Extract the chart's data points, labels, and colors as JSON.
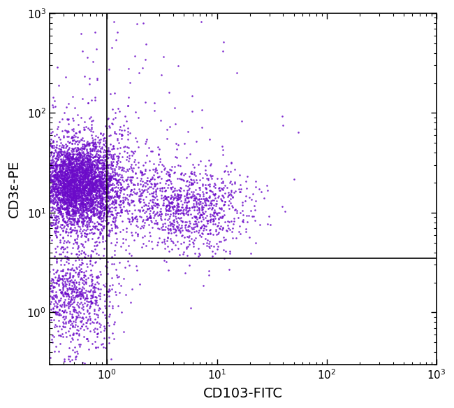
{
  "xlabel": "CD103-FITC",
  "ylabel": "CD3ε-PE",
  "dot_color": "#6B0AC9",
  "dot_alpha": 0.85,
  "dot_size": 3.5,
  "xlim": [
    0.3,
    1000
  ],
  "ylim": [
    0.3,
    1000
  ],
  "gate_x": 1.0,
  "gate_y": 3.5,
  "background_color": "#ffffff",
  "clusters": {
    "main_left": {
      "n": 3000,
      "x_log_mean": -0.28,
      "y_log_mean": 1.28,
      "x_log_std": 0.18,
      "y_log_std": 0.2
    },
    "main_left_halo": {
      "n": 1500,
      "x_log_mean": -0.28,
      "y_log_mean": 1.25,
      "x_log_std": 0.35,
      "y_log_std": 0.38
    },
    "cd103_positive": {
      "n": 1000,
      "x_log_mean": 0.72,
      "y_log_mean": 1.05,
      "x_log_std": 0.28,
      "y_log_std": 0.22
    },
    "bottom_left": {
      "n": 600,
      "x_log_mean": -0.35,
      "y_log_mean": 0.18,
      "x_log_std": 0.2,
      "y_log_std": 0.18
    },
    "bottom_left_tail": {
      "n": 200,
      "x_log_mean": -0.25,
      "y_log_mean": -0.15,
      "x_log_std": 0.18,
      "y_log_std": 0.25
    },
    "high_cd3_scatter": {
      "n": 80,
      "x_log_mean": 0.35,
      "y_log_mean": 2.0,
      "x_log_std": 0.45,
      "y_log_std": 0.6
    },
    "sparse_top_right": {
      "n": 3,
      "x_log_mean": 1.8,
      "y_log_mean": 1.85,
      "x_log_std": 0.1,
      "y_log_std": 0.1
    }
  }
}
